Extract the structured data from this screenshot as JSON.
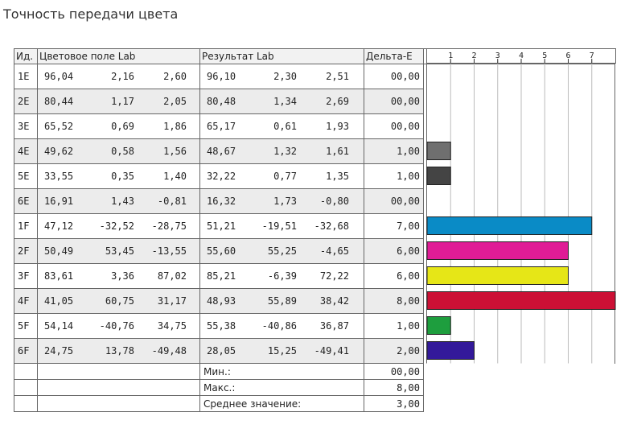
{
  "title": "Точность передачи цвета",
  "headers": {
    "id": "Ид.",
    "field": "Цветовое поле Lab",
    "result": "Результат Lab",
    "delta": "Дельта-E"
  },
  "rows": [
    {
      "id": "1E",
      "field": [
        "96,04",
        "2,16",
        "2,60"
      ],
      "result": [
        "96,10",
        "2,30",
        "2,51"
      ],
      "delta": "00,00"
    },
    {
      "id": "2E",
      "field": [
        "80,44",
        "1,17",
        "2,05"
      ],
      "result": [
        "80,48",
        "1,34",
        "2,69"
      ],
      "delta": "00,00"
    },
    {
      "id": "3E",
      "field": [
        "65,52",
        "0,69",
        "1,86"
      ],
      "result": [
        "65,17",
        "0,61",
        "1,93"
      ],
      "delta": "00,00"
    },
    {
      "id": "4E",
      "field": [
        "49,62",
        "0,58",
        "1,56"
      ],
      "result": [
        "48,67",
        "1,32",
        "1,61"
      ],
      "delta": "1,00"
    },
    {
      "id": "5E",
      "field": [
        "33,55",
        "0,35",
        "1,40"
      ],
      "result": [
        "32,22",
        "0,77",
        "1,35"
      ],
      "delta": "1,00"
    },
    {
      "id": "6E",
      "field": [
        "16,91",
        "1,43",
        "-0,81"
      ],
      "result": [
        "16,32",
        "1,73",
        "-0,80"
      ],
      "delta": "00,00"
    },
    {
      "id": "1F",
      "field": [
        "47,12",
        "-32,52",
        "-28,75"
      ],
      "result": [
        "51,21",
        "-19,51",
        "-32,68"
      ],
      "delta": "7,00"
    },
    {
      "id": "2F",
      "field": [
        "50,49",
        "53,45",
        "-13,55"
      ],
      "result": [
        "55,60",
        "55,25",
        "-4,65"
      ],
      "delta": "6,00"
    },
    {
      "id": "3F",
      "field": [
        "83,61",
        "3,36",
        "87,02"
      ],
      "result": [
        "85,21",
        "-6,39",
        "72,22"
      ],
      "delta": "6,00"
    },
    {
      "id": "4F",
      "field": [
        "41,05",
        "60,75",
        "31,17"
      ],
      "result": [
        "48,93",
        "55,89",
        "38,42"
      ],
      "delta": "8,00"
    },
    {
      "id": "5F",
      "field": [
        "54,14",
        "-40,76",
        "34,75"
      ],
      "result": [
        "55,38",
        "-40,86",
        "36,87"
      ],
      "delta": "1,00"
    },
    {
      "id": "6F",
      "field": [
        "24,75",
        "13,78",
        "-49,48"
      ],
      "result": [
        "28,05",
        "15,25",
        "-49,41"
      ],
      "delta": "2,00"
    }
  ],
  "summary": [
    {
      "label": "Мин.:",
      "value": "00,00"
    },
    {
      "label": "Макс.:",
      "value": "8,00"
    },
    {
      "label": "Среднее значение:",
      "value": "3,00"
    }
  ],
  "chart_data": {
    "type": "bar",
    "orientation": "horizontal",
    "categories": [
      "1E",
      "2E",
      "3E",
      "4E",
      "5E",
      "6E",
      "1F",
      "2F",
      "3F",
      "4F",
      "5F",
      "6F"
    ],
    "values": [
      0,
      0,
      0,
      1,
      1,
      0,
      7,
      6,
      6,
      8,
      1,
      2
    ],
    "bar_colors": [
      "#7a7a7a",
      "#7a7a7a",
      "#7a7a7a",
      "#6f6f6f",
      "#444444",
      "#7a7a7a",
      "#0a8bc6",
      "#e01c96",
      "#e6e617",
      "#cc1035",
      "#1e9e3e",
      "#33199a"
    ],
    "x_ticks": [
      "1",
      "2",
      "3",
      "4",
      "5",
      "6",
      "7"
    ],
    "xlim": [
      0,
      8
    ],
    "grid": true
  }
}
